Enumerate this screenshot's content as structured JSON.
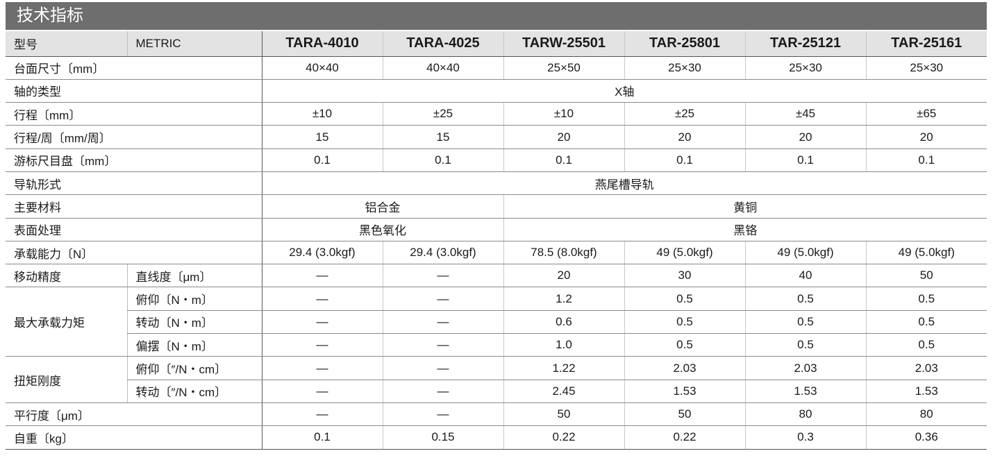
{
  "header": {
    "title": "技术指标"
  },
  "table": {
    "columns": [
      "型号",
      "METRIC",
      "TARA-4010",
      "TARA-4025",
      "TARW-25501",
      "TAR-25801",
      "TAR-25121",
      "TAR-25161"
    ],
    "rows": [
      {
        "label": "台面尺寸〔mm〕",
        "cells": [
          "40×40",
          "40×40",
          "25×50",
          "25×30",
          "25×30",
          "25×30"
        ]
      },
      {
        "label": "轴的类型",
        "cells": [
          "X轴"
        ]
      },
      {
        "label": "行程〔mm〕",
        "cells": [
          "±10",
          "±25",
          "±10",
          "±25",
          "±45",
          "±65"
        ]
      },
      {
        "label": "行程/周〔mm/周〕",
        "cells": [
          "15",
          "15",
          "20",
          "20",
          "20",
          "20"
        ]
      },
      {
        "label": "游标尺目盘〔mm〕",
        "cells": [
          "0.1",
          "0.1",
          "0.1",
          "0.1",
          "0.1",
          "0.1"
        ]
      },
      {
        "label": "导轨形式",
        "cells": [
          "燕尾槽导轨"
        ]
      },
      {
        "label": "主要材料",
        "cells": [
          "铝合金",
          "黄铜"
        ]
      },
      {
        "label": "表面处理",
        "cells": [
          "黑色氧化",
          "黑铬"
        ]
      },
      {
        "label": "承载能力〔N〕",
        "cells": [
          "29.4 (3.0kgf)",
          "29.4 (3.0kgf)",
          "78.5 (8.0kgf)",
          "49 (5.0kgf)",
          "49 (5.0kgf)",
          "49 (5.0kgf)"
        ]
      },
      {
        "label": "移动精度",
        "sub_rows": [
          {
            "sub": "直线度〔μm〕",
            "cells": [
              "—",
              "—",
              "20",
              "30",
              "40",
              "50"
            ]
          }
        ]
      },
      {
        "label": "最大承载力矩",
        "sub_rows": [
          {
            "sub": "俯仰〔N・m〕",
            "cells": [
              "—",
              "—",
              "1.2",
              "0.5",
              "0.5",
              "0.5"
            ]
          },
          {
            "sub": "转动〔N・m〕",
            "cells": [
              "—",
              "—",
              "0.6",
              "0.5",
              "0.5",
              "0.5"
            ]
          },
          {
            "sub": "偏摆〔N・m〕",
            "cells": [
              "—",
              "—",
              "1.0",
              "0.5",
              "0.5",
              "0.5"
            ]
          }
        ]
      },
      {
        "label": "扭矩刚度",
        "sub_rows": [
          {
            "sub": "俯仰〔″/N・cm〕",
            "cells": [
              "—",
              "—",
              "1.22",
              "2.03",
              "2.03",
              "2.03"
            ]
          },
          {
            "sub": "转动〔″/N・cm〕",
            "cells": [
              "—",
              "—",
              "2.45",
              "1.53",
              "1.53",
              "1.53"
            ]
          }
        ]
      },
      {
        "label": "平行度〔μm〕",
        "cells": [
          "—",
          "—",
          "50",
          "50",
          "80",
          "80"
        ]
      },
      {
        "label": "自重〔kg〕",
        "cells": [
          "0.1",
          "0.15",
          "0.22",
          "0.22",
          "0.3",
          "0.36"
        ]
      }
    ]
  }
}
